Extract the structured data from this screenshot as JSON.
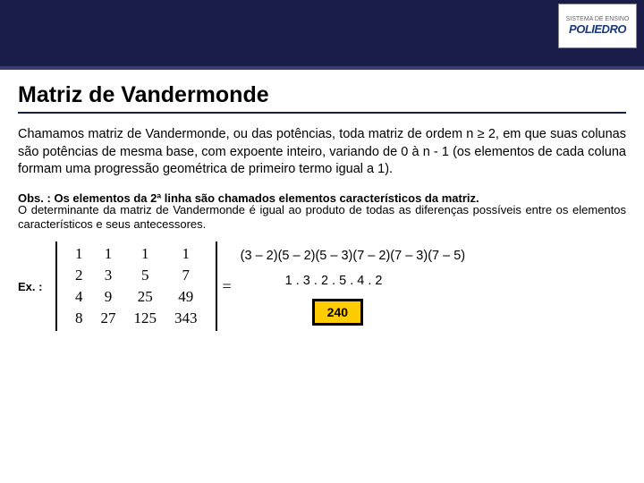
{
  "header": {
    "logo_small": "SISTEMA DE ENSINO",
    "logo_main": "POLIEDRO",
    "bg_color": "#1a1d4a"
  },
  "title": "Matriz de Vandermonde",
  "paragraph1": "Chamamos matriz de Vandermonde, ou das potências, toda matriz de ordem n ≥ 2, em que suas colunas são potências de mesma base, com expoente inteiro, variando de 0 à n - 1 (os elementos de cada coluna formam uma progressão geométrica de primeiro termo igual a 1).",
  "obs1": "Obs. : Os elementos da 2ª linha são chamados elementos característicos da matriz.",
  "obs2": "O determinante da matriz de Vandermonde é igual ao produto de todas as diferenças possíveis entre os elementos característicos e seus antecessores.",
  "example": {
    "label": "Ex. :",
    "matrix": {
      "rows": [
        [
          "1",
          "1",
          "1",
          "1"
        ],
        [
          "2",
          "3",
          "5",
          "7"
        ],
        [
          "4",
          "9",
          "25",
          "49"
        ],
        [
          "8",
          "27",
          "125",
          "343"
        ]
      ]
    },
    "eq_symbol": "=",
    "calc_line1": "(3 – 2)(5 – 2)(5 – 3)(7 – 2)(7 – 3)(7 – 5)",
    "calc_line2": "1 . 3 . 2 . 5 . 4 . 2",
    "result": "240",
    "result_bg": "#ffcc00"
  }
}
